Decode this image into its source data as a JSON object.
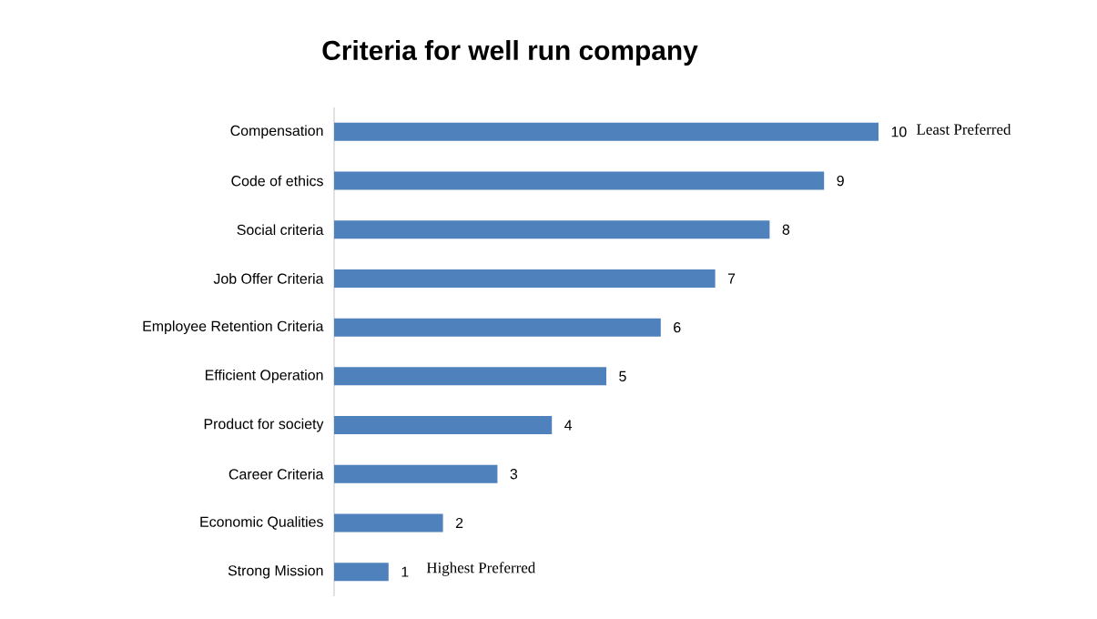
{
  "chart_data": {
    "type": "bar",
    "orientation": "horizontal",
    "title": "Criteria for well run company",
    "categories": [
      "Compensation",
      "Code of ethics",
      "Social criteria",
      "Job Offer Criteria",
      "Employee Retention Criteria",
      "Efficient Operation",
      "Product for society",
      "Career Criteria",
      "Economic Qualities",
      "Strong Mission"
    ],
    "values": [
      10,
      9,
      8,
      7,
      6,
      5,
      4,
      3,
      2,
      1
    ],
    "color": "#4f81bd",
    "data_labels": true,
    "annotations": [
      {
        "text": "Least Preferred",
        "x": 10,
        "y": "Compensation"
      },
      {
        "text": "Highest Preferred",
        "x": 1,
        "y": "Strong Mission"
      }
    ]
  }
}
